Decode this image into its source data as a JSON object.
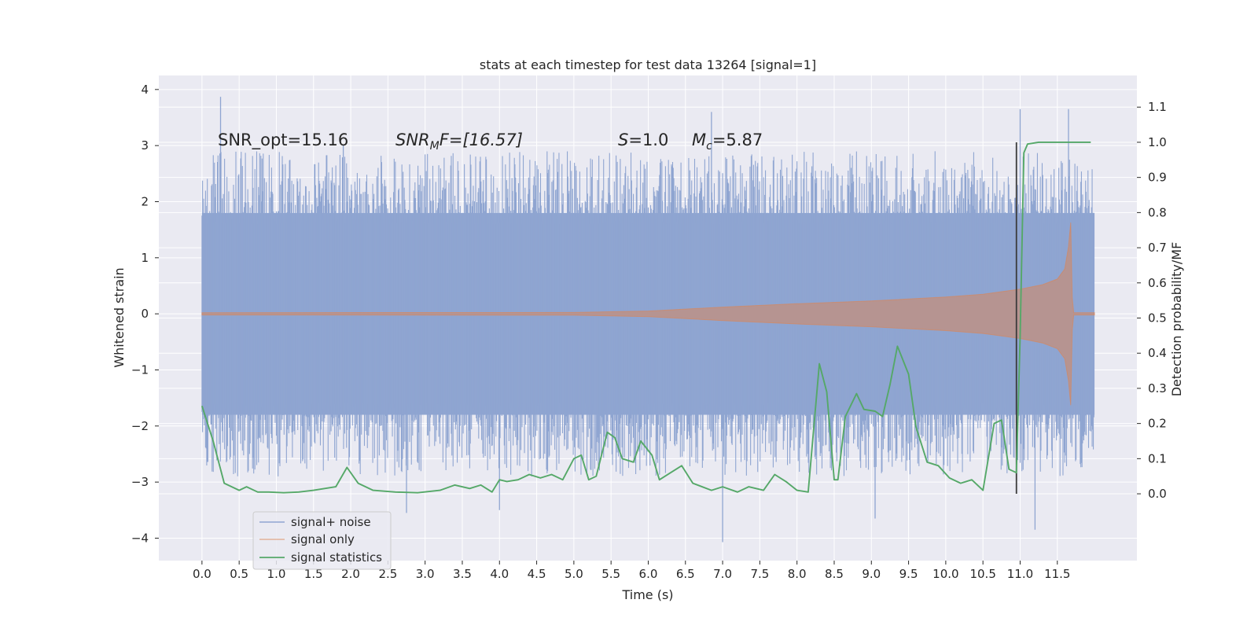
{
  "chart_data": {
    "type": "line",
    "title": "stats at each timestep for test data 13264 [signal=1]",
    "xlabel": "Time (s)",
    "ylabel": "Whitened strain",
    "y2label": "Detection probability/MF",
    "xlim": [
      -0.58,
      12.57
    ],
    "ylim": [
      -4.4,
      4.25
    ],
    "y2lim": [
      -0.19,
      1.19
    ],
    "x_ticks": [
      0.0,
      0.5,
      1.0,
      1.5,
      2.0,
      2.5,
      3.0,
      3.5,
      4.0,
      4.5,
      5.0,
      5.5,
      6.0,
      6.5,
      7.0,
      7.5,
      8.0,
      8.5,
      9.0,
      9.5,
      10.0,
      10.5,
      11.0,
      11.5
    ],
    "x_tick_labels": [
      "0.0",
      "0.5",
      "1.0",
      "1.5",
      "2.0",
      "2.5",
      "3.0",
      "3.5",
      "4.0",
      "4.5",
      "5.0",
      "5.5",
      "6.0",
      "6.5",
      "7.0",
      "7.5",
      "8.0",
      "8.5",
      "9.0",
      "9.5",
      "10.0",
      "10.5",
      "11.0",
      "11.5"
    ],
    "y_ticks": [
      -4,
      -3,
      -2,
      -1,
      0,
      1,
      2,
      3,
      4
    ],
    "y_tick_labels": [
      "−4",
      "−3",
      "−2",
      "−1",
      "0",
      "1",
      "2",
      "3",
      "4"
    ],
    "y2_ticks": [
      0.0,
      0.1,
      0.2,
      0.3,
      0.4,
      0.5,
      0.6,
      0.7,
      0.8,
      0.9,
      1.0,
      1.1
    ],
    "y2_tick_labels": [
      "0.0",
      "0.1",
      "0.2",
      "0.3",
      "0.4",
      "0.5",
      "0.6",
      "0.7",
      "0.8",
      "0.9",
      "1.0",
      "1.1"
    ],
    "grid": true,
    "legend_position": "lower-left",
    "colors": {
      "background": "#eaeaf2",
      "grid": "#ffffff",
      "noise": "#8fa5d1",
      "signal": "#dd8452",
      "stats": "#55a868",
      "vline": "#3a3a3a"
    },
    "series": [
      {
        "name": "signal+ noise",
        "axis": "left",
        "style": "dense noise band",
        "x_range": [
          0.0,
          12.0
        ],
        "typical_envelope": [
          -1.8,
          1.8
        ],
        "peak_max": 3.87,
        "peak_min": -4.07
      },
      {
        "name": "signal only",
        "axis": "left",
        "style": "chirp envelope",
        "x": [
          0.0,
          5.0,
          6.0,
          7.0,
          8.0,
          9.0,
          10.0,
          10.5,
          11.0,
          11.3,
          11.5,
          11.6,
          11.65,
          11.68,
          11.7,
          11.72,
          12.0
        ],
        "amplitude": [
          0.02,
          0.025,
          0.05,
          0.12,
          0.18,
          0.23,
          0.3,
          0.35,
          0.44,
          0.52,
          0.62,
          0.8,
          1.2,
          1.63,
          0.3,
          0.02,
          0.02
        ]
      },
      {
        "name": "signal statistics",
        "axis": "right",
        "x": [
          0.0,
          0.15,
          0.3,
          0.5,
          0.6,
          0.75,
          0.9,
          1.1,
          1.3,
          1.5,
          1.8,
          1.95,
          2.1,
          2.3,
          2.6,
          2.9,
          3.2,
          3.4,
          3.6,
          3.75,
          3.9,
          4.0,
          4.1,
          4.25,
          4.4,
          4.55,
          4.7,
          4.85,
          5.0,
          5.1,
          5.2,
          5.3,
          5.45,
          5.55,
          5.65,
          5.8,
          5.9,
          6.05,
          6.15,
          6.3,
          6.45,
          6.6,
          6.85,
          7.0,
          7.2,
          7.35,
          7.55,
          7.7,
          7.85,
          8.0,
          8.15,
          8.3,
          8.4,
          8.5,
          8.55,
          8.65,
          8.8,
          8.9,
          9.05,
          9.15,
          9.25,
          9.35,
          9.5,
          9.6,
          9.75,
          9.9,
          10.05,
          10.2,
          10.35,
          10.5,
          10.65,
          10.75,
          10.85,
          10.95,
          11.0,
          11.05,
          11.1,
          11.25,
          11.5,
          11.8,
          11.95
        ],
        "y": [
          0.25,
          0.15,
          0.03,
          0.01,
          0.02,
          0.005,
          0.005,
          0.003,
          0.005,
          0.01,
          0.02,
          0.075,
          0.03,
          0.01,
          0.005,
          0.003,
          0.01,
          0.025,
          0.015,
          0.025,
          0.005,
          0.04,
          0.035,
          0.04,
          0.055,
          0.045,
          0.055,
          0.04,
          0.1,
          0.11,
          0.04,
          0.05,
          0.175,
          0.16,
          0.1,
          0.09,
          0.15,
          0.11,
          0.04,
          0.06,
          0.08,
          0.03,
          0.01,
          0.02,
          0.005,
          0.02,
          0.01,
          0.055,
          0.035,
          0.01,
          0.005,
          0.37,
          0.29,
          0.04,
          0.04,
          0.22,
          0.285,
          0.24,
          0.235,
          0.22,
          0.31,
          0.42,
          0.34,
          0.19,
          0.09,
          0.08,
          0.045,
          0.03,
          0.04,
          0.01,
          0.2,
          0.21,
          0.07,
          0.06,
          0.45,
          0.97,
          0.995,
          1.0,
          1.0,
          1.0,
          1.0
        ]
      }
    ],
    "vertical_line": {
      "x": 10.95,
      "y_range_right": [
        0.0,
        1.0
      ]
    },
    "annotations": [
      {
        "id": "snr-opt",
        "text": "SNR_opt=15.16"
      },
      {
        "id": "snr-mf-base",
        "text": "SNR"
      },
      {
        "id": "snr-mf-sub",
        "text": "M"
      },
      {
        "id": "snr-mf-rest",
        "text": "F=[16.57]"
      },
      {
        "id": "s-sym",
        "text": "S"
      },
      {
        "id": "s-val",
        "text": "=1.0"
      },
      {
        "id": "mc-base",
        "text": "M"
      },
      {
        "id": "mc-sub",
        "text": "c"
      },
      {
        "id": "mc-val",
        "text": "=5.87"
      }
    ],
    "legend": [
      {
        "label": "signal+ noise"
      },
      {
        "label": "signal only"
      },
      {
        "label": "signal statistics"
      }
    ]
  }
}
